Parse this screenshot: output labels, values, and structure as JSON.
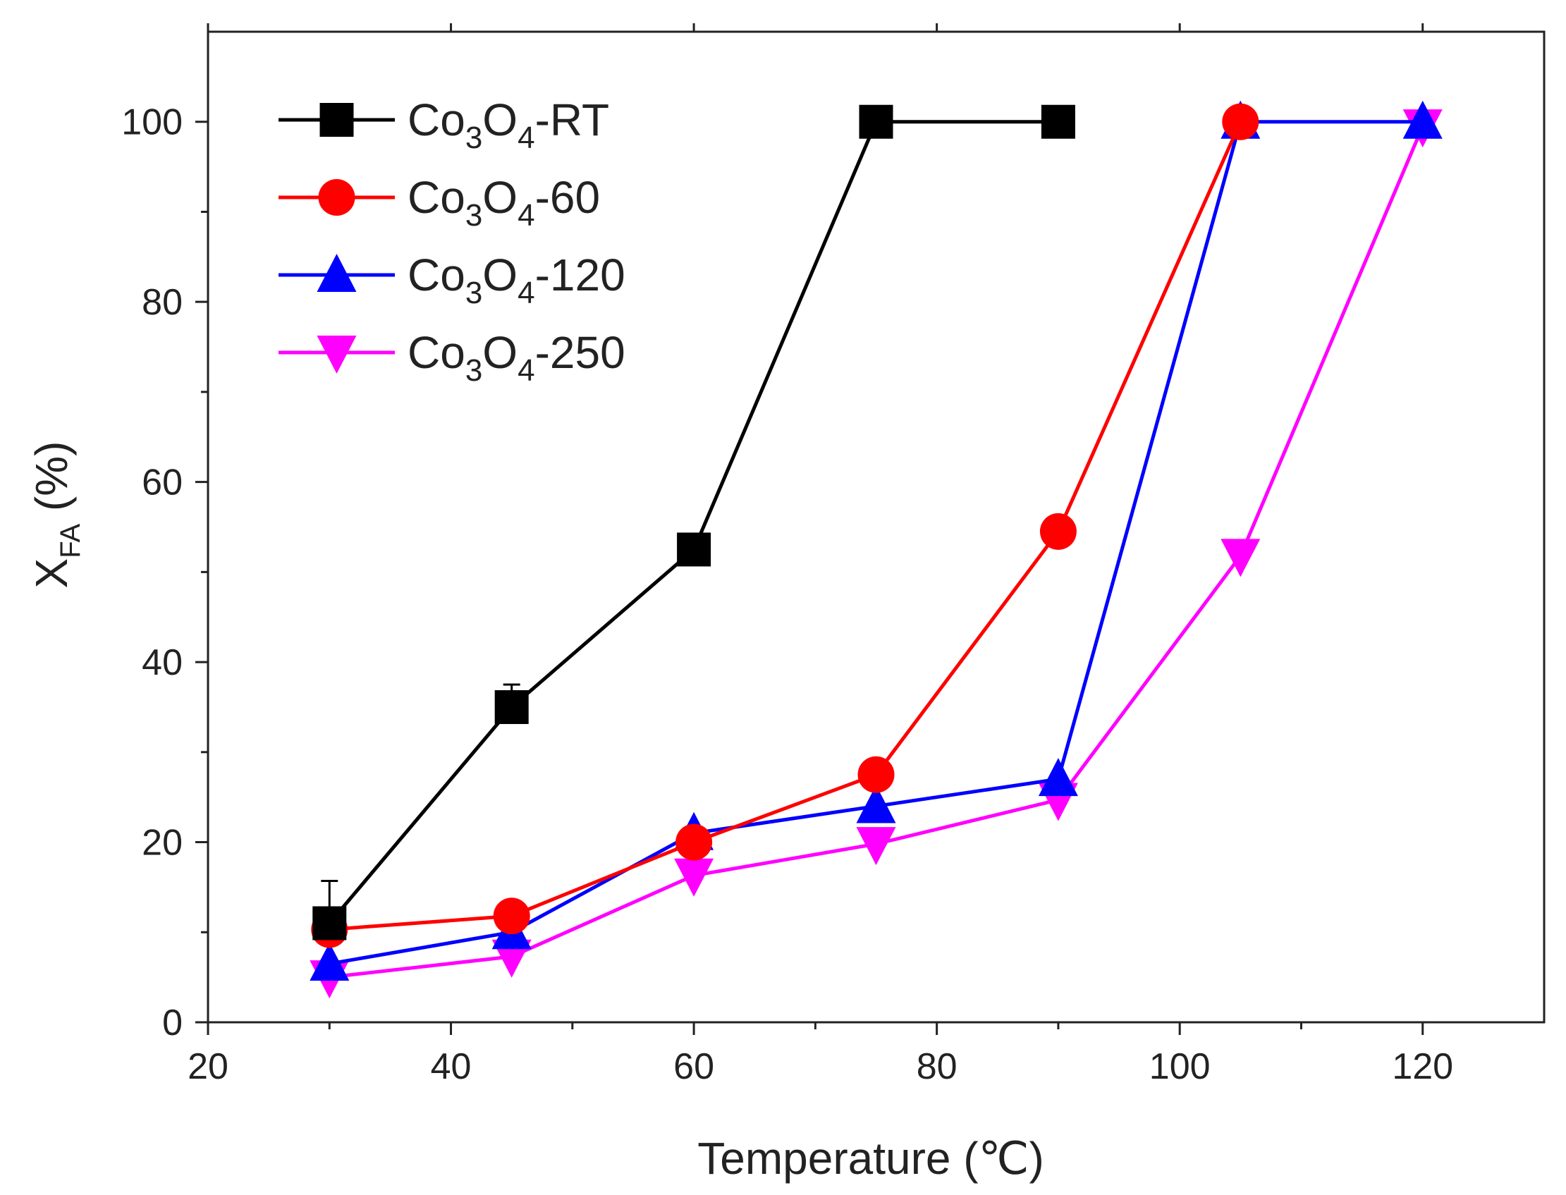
{
  "chart_data": {
    "type": "line",
    "title": "",
    "xlabel": "Temperature (℃)",
    "ylabel": "X_FA (%)",
    "ylabel_main": "X",
    "ylabel_sub": "FA",
    "ylabel_rest": " (%)",
    "xlim": [
      20,
      130
    ],
    "ylim": [
      0,
      110
    ],
    "xticks": [
      20,
      40,
      60,
      80,
      100,
      120
    ],
    "yticks": [
      0,
      20,
      40,
      60,
      80,
      100
    ],
    "grid": false,
    "legend_position": "top-left",
    "series": [
      {
        "name": "Co3O4-RT",
        "label_parts": [
          "Co",
          "3",
          "O",
          "4",
          "-RT"
        ],
        "color": "#000000",
        "marker": "square",
        "x": [
          30,
          45,
          60,
          75,
          90
        ],
        "y": [
          11,
          35,
          52.5,
          100,
          100
        ],
        "err": [
          4.7,
          2.5,
          0,
          0,
          0
        ]
      },
      {
        "name": "Co3O4-60",
        "label_parts": [
          "Co",
          "3",
          "O",
          "4",
          "-60"
        ],
        "color": "#ff0000",
        "marker": "circle",
        "x": [
          30,
          45,
          60,
          75,
          90,
          105
        ],
        "y": [
          10.3,
          11.8,
          20,
          27.5,
          54.5,
          100
        ],
        "err": [
          0,
          0,
          0,
          0,
          0,
          0
        ]
      },
      {
        "name": "Co3O4-120",
        "label_parts": [
          "Co",
          "3",
          "O",
          "4",
          "-120"
        ],
        "color": "#0000ff",
        "marker": "triangle-up",
        "x": [
          30,
          45,
          60,
          75,
          90,
          105,
          120
        ],
        "y": [
          6.5,
          10,
          21,
          24,
          27,
          100,
          100
        ],
        "err": [
          0,
          0,
          0,
          0,
          0,
          0,
          0
        ]
      },
      {
        "name": "Co3O4-250",
        "label_parts": [
          "Co",
          "3",
          "O",
          "4",
          "-250"
        ],
        "color": "#ff00ff",
        "marker": "triangle-down",
        "x": [
          30,
          45,
          60,
          75,
          90,
          105,
          120
        ],
        "y": [
          5,
          7.3,
          16.3,
          19.8,
          24.7,
          51.8,
          99.5
        ],
        "err": [
          0,
          0,
          0,
          0,
          0,
          0,
          0
        ]
      }
    ]
  }
}
